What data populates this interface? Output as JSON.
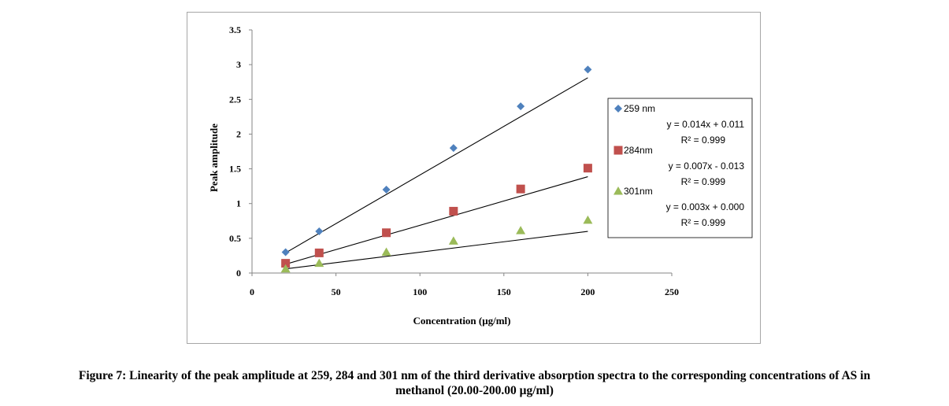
{
  "caption": {
    "line1": "Figure 7: Linearity of the peak amplitude at 259, 284 and 301 nm of the third derivative absorption spectra to the corresponding concentrations of AS in",
    "line2": "methanol (20.00-200.00 μg/ml)"
  },
  "chart_data": {
    "type": "scatter",
    "title": "",
    "xlabel": "Concentration (μg/ml)",
    "ylabel": "Peak amplitude",
    "xlim": [
      0,
      250
    ],
    "ylim": [
      0,
      3.5
    ],
    "x_ticks": [
      "0",
      "50",
      "100",
      "150",
      "200",
      "250"
    ],
    "y_ticks": [
      "0",
      "0.5",
      "1",
      "1.5",
      "2",
      "2.5",
      "3",
      "3.5"
    ],
    "grid": false,
    "legend_position": "right",
    "series": [
      {
        "name": "259 nm",
        "marker": "diamond",
        "color": "#4f81bd",
        "x": [
          20,
          40,
          80,
          120,
          160,
          200
        ],
        "y": [
          0.3,
          0.6,
          1.2,
          1.8,
          2.4,
          2.93
        ],
        "trendline": {
          "slope": 0.014,
          "intercept": 0.011
        },
        "equation": "y = 0.014x + 0.011",
        "r2": "R² = 0.999"
      },
      {
        "name": "284nm",
        "marker": "square",
        "color": "#c0504d",
        "x": [
          20,
          40,
          80,
          120,
          160,
          200
        ],
        "y": [
          0.14,
          0.29,
          0.58,
          0.89,
          1.21,
          1.51
        ],
        "trendline": {
          "slope": 0.007,
          "intercept": -0.013
        },
        "equation": "y = 0.007x - 0.013",
        "r2": "R² = 0.999"
      },
      {
        "name": "301nm",
        "marker": "triangle",
        "color": "#9bbb59",
        "x": [
          20,
          40,
          80,
          120,
          160,
          200
        ],
        "y": [
          0.06,
          0.14,
          0.3,
          0.46,
          0.61,
          0.76
        ],
        "trendline": {
          "slope": 0.003,
          "intercept": 0.0
        },
        "equation": "y = 0.003x + 0.000",
        "r2": "R² = 0.999"
      }
    ]
  }
}
